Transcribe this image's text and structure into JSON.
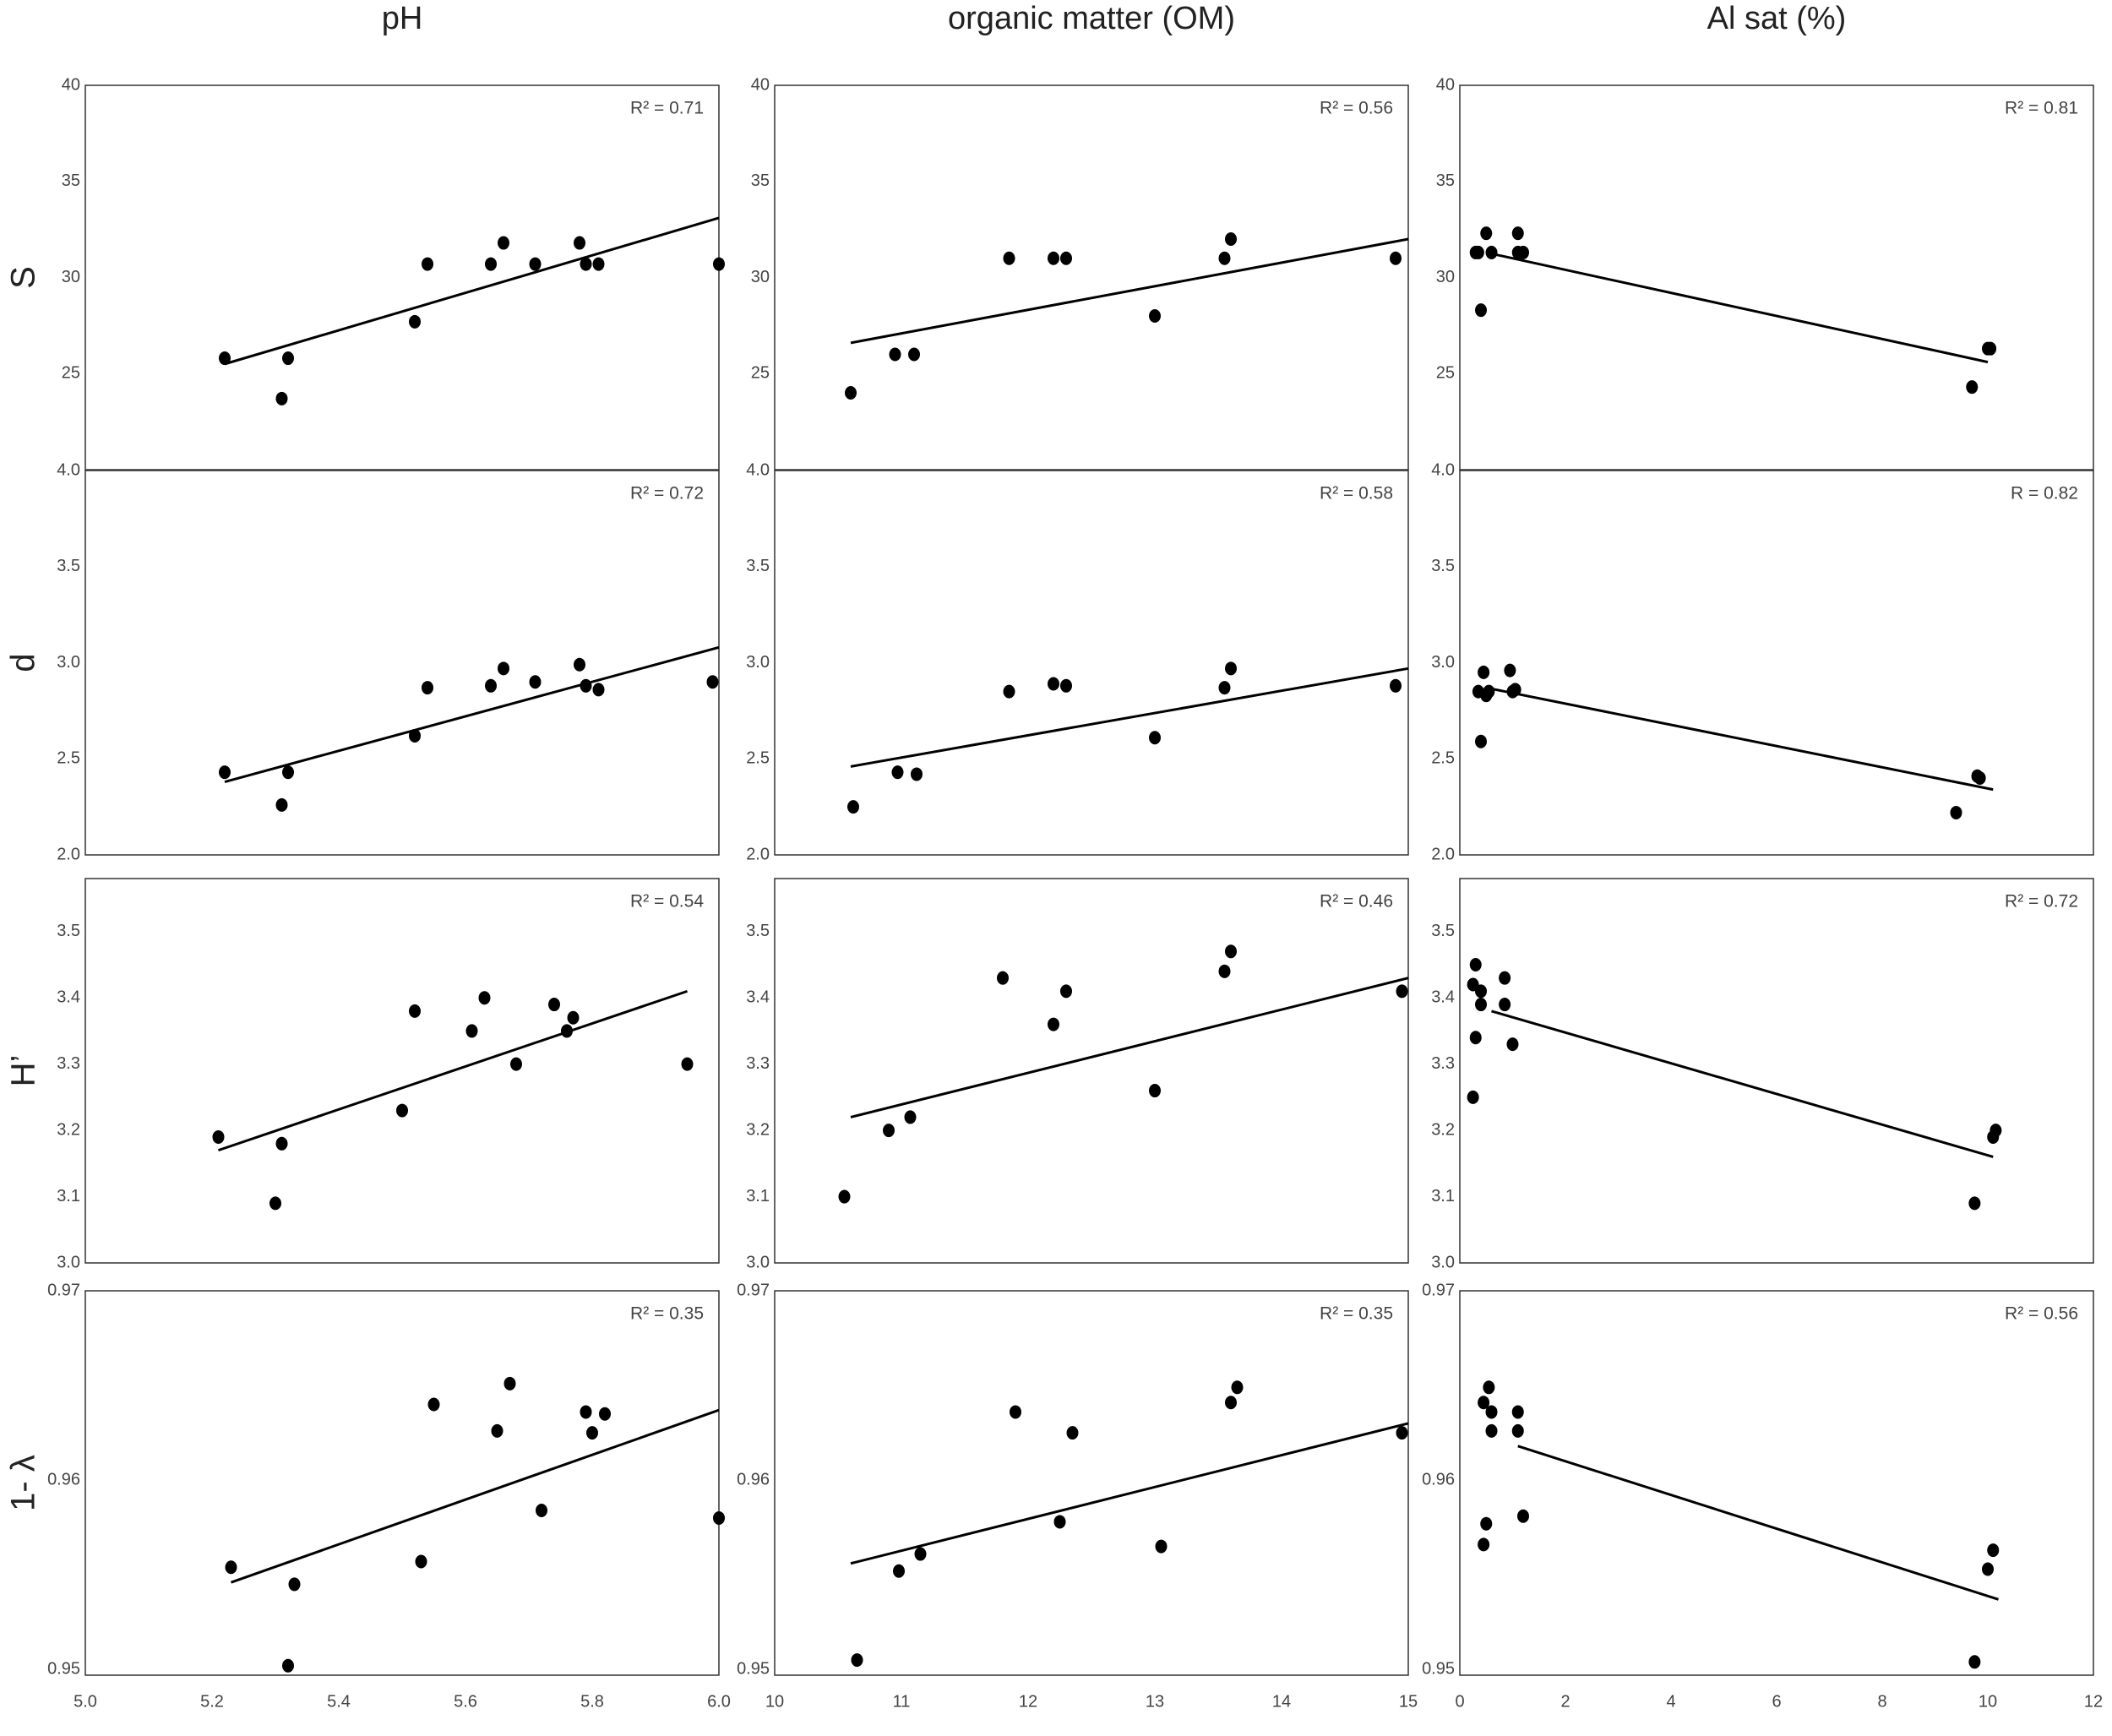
{
  "column_titles": [
    "pH",
    "organic matter (OM)",
    "Al sat (%)"
  ],
  "row_labels": [
    "S",
    "d",
    "H’",
    "1- λ"
  ],
  "chart_data": [
    {
      "type": "scatter",
      "color": "#000000",
      "annotation": "R² = 0.71",
      "x": [
        5.22,
        5.31,
        5.32,
        5.52,
        5.54,
        5.64,
        5.66,
        5.71,
        5.78,
        5.79,
        5.81,
        6.0
      ],
      "y": [
        25.8,
        23.7,
        25.8,
        27.7,
        30.7,
        30.7,
        31.8,
        30.7,
        31.8,
        30.7,
        30.7,
        30.7
      ],
      "fit": {
        "x": [
          5.22,
          6.0
        ],
        "y": [
          25.5,
          33.1
        ]
      },
      "xlim": [
        5,
        6
      ],
      "ylim": [
        20,
        40
      ],
      "yticks": [
        25,
        30,
        35,
        40
      ]
    },
    {
      "type": "scatter",
      "color": "#000000",
      "annotation": "R² = 0.56",
      "x": [
        10.6,
        10.95,
        11.1,
        11.85,
        12.2,
        12.3,
        13.0,
        13.55,
        13.6,
        14.9
      ],
      "y": [
        24,
        26,
        26,
        31,
        31,
        31,
        28,
        31,
        32,
        31
      ],
      "fit": {
        "x": [
          10.6,
          15
        ],
        "y": [
          26.6,
          32
        ]
      },
      "xlim": [
        10,
        15
      ],
      "ylim": [
        20,
        40
      ],
      "yticks": [
        25,
        30,
        35,
        40
      ]
    },
    {
      "type": "scatter",
      "color": "#000000",
      "annotation": "R² = 0.81",
      "x": [
        0.3,
        0.5,
        0.6,
        0.4,
        1.1,
        1.1,
        1.2,
        0.35,
        9.7,
        10.0,
        10.05
      ],
      "y": [
        31.3,
        32.3,
        31.3,
        28.3,
        32.3,
        31.3,
        31.3,
        31.3,
        24.3,
        26.3,
        26.3
      ],
      "fit": {
        "x": [
          0.5,
          10
        ],
        "y": [
          31.3,
          25.6
        ]
      },
      "xlim": [
        0,
        12
      ],
      "ylim": [
        20,
        40
      ],
      "yticks": [
        25,
        30,
        35,
        40
      ]
    },
    {
      "type": "scatter",
      "color": "#000000",
      "annotation": "R² = 0.72",
      "x": [
        5.22,
        5.31,
        5.32,
        5.52,
        5.54,
        5.64,
        5.66,
        5.71,
        5.78,
        5.79,
        5.81,
        5.99
      ],
      "y": [
        2.43,
        2.26,
        2.43,
        2.62,
        2.87,
        2.88,
        2.97,
        2.9,
        2.99,
        2.88,
        2.86,
        2.9
      ],
      "fit": {
        "x": [
          5.22,
          6.0
        ],
        "y": [
          2.38,
          3.08
        ]
      },
      "xlim": [
        5,
        6
      ],
      "ylim": [
        2,
        4
      ],
      "yticks": [
        {
          "value": 2,
          "label": "2.0"
        },
        2.5,
        {
          "value": 3,
          "label": "3.0"
        },
        3.5,
        {
          "value": 4,
          "label": "4.0"
        }
      ]
    },
    {
      "type": "scatter",
      "color": "#000000",
      "annotation": "R² = 0.58",
      "x": [
        10.62,
        10.97,
        11.12,
        11.85,
        12.2,
        12.3,
        13.0,
        13.55,
        13.6,
        14.9
      ],
      "y": [
        2.25,
        2.43,
        2.42,
        2.85,
        2.89,
        2.88,
        2.61,
        2.87,
        2.97,
        2.88
      ],
      "fit": {
        "x": [
          10.6,
          15
        ],
        "y": [
          2.46,
          2.97
        ]
      },
      "xlim": [
        10,
        15
      ],
      "ylim": [
        2,
        4
      ],
      "yticks": [
        {
          "value": 2,
          "label": "2.0"
        },
        2.5,
        {
          "value": 3,
          "label": "3.0"
        },
        3.5,
        {
          "value": 4,
          "label": "4.0"
        }
      ]
    },
    {
      "type": "scatter",
      "color": "#000000",
      "annotation": "R = 0.82",
      "x": [
        0.35,
        0.45,
        0.5,
        0.4,
        0.55,
        0.95,
        1.0,
        1.05,
        9.4,
        9.8,
        9.85
      ],
      "y": [
        2.85,
        2.95,
        2.83,
        2.59,
        2.85,
        2.96,
        2.85,
        2.86,
        2.22,
        2.41,
        2.4
      ],
      "fit": {
        "x": [
          0.5,
          10.1
        ],
        "y": [
          2.87,
          2.34
        ]
      },
      "xlim": [
        0,
        12
      ],
      "ylim": [
        2,
        4
      ],
      "yticks": [
        {
          "value": 2,
          "label": "2.0"
        },
        2.5,
        {
          "value": 3,
          "label": "3.0"
        },
        3.5,
        {
          "value": 4,
          "label": "4.0"
        }
      ]
    },
    {
      "type": "scatter",
      "color": "#000000",
      "annotation": "R² = 0.54",
      "x": [
        5.21,
        5.3,
        5.31,
        5.5,
        5.52,
        5.61,
        5.63,
        5.68,
        5.74,
        5.76,
        5.77,
        5.95
      ],
      "y": [
        3.19,
        3.09,
        3.18,
        3.23,
        3.38,
        3.35,
        3.4,
        3.3,
        3.39,
        3.35,
        3.37,
        3.3
      ],
      "fit": {
        "x": [
          5.21,
          5.95
        ],
        "y": [
          3.17,
          3.41
        ]
      },
      "xlim": [
        5,
        6
      ],
      "ylim": [
        3,
        3.58
      ],
      "yticks": [
        {
          "value": 3,
          "label": "3.0"
        },
        3.1,
        3.2,
        3.3,
        3.4,
        3.5
      ]
    },
    {
      "type": "scatter",
      "color": "#000000",
      "annotation": "R² = 0.46",
      "x": [
        10.55,
        10.9,
        11.07,
        11.8,
        12.2,
        12.3,
        13.0,
        13.55,
        13.6,
        14.95
      ],
      "y": [
        3.1,
        3.2,
        3.22,
        3.43,
        3.36,
        3.41,
        3.26,
        3.44,
        3.47,
        3.41
      ],
      "fit": {
        "x": [
          10.6,
          15
        ],
        "y": [
          3.22,
          3.43
        ]
      },
      "xlim": [
        10,
        15
      ],
      "ylim": [
        3,
        3.58
      ],
      "yticks": [
        {
          "value": 3,
          "label": "3.0"
        },
        3.1,
        3.2,
        3.3,
        3.4,
        3.5
      ]
    },
    {
      "type": "scatter",
      "color": "#000000",
      "annotation": "R² = 0.72",
      "x": [
        0.25,
        0.3,
        0.4,
        0.4,
        0.3,
        0.25,
        0.85,
        0.85,
        1.0,
        9.75,
        10.1,
        10.15
      ],
      "y": [
        3.42,
        3.45,
        3.41,
        3.39,
        3.34,
        3.25,
        3.43,
        3.39,
        3.33,
        3.09,
        3.19,
        3.2
      ],
      "fit": {
        "x": [
          0.6,
          10.1
        ],
        "y": [
          3.38,
          3.16
        ]
      },
      "xlim": [
        0,
        12
      ],
      "ylim": [
        3,
        3.58
      ],
      "yticks": [
        {
          "value": 3,
          "label": "3.0"
        },
        3.1,
        3.2,
        3.3,
        3.4,
        3.5
      ]
    },
    {
      "type": "scatter",
      "color": "#000000",
      "annotation": "R² = 0.35",
      "x": [
        5.23,
        5.32,
        5.33,
        5.53,
        5.55,
        5.65,
        5.67,
        5.72,
        5.79,
        5.8,
        5.82,
        6.0
      ],
      "y": [
        0.9554,
        0.9502,
        0.9545,
        0.9557,
        0.964,
        0.9626,
        0.9651,
        0.9584,
        0.9636,
        0.9625,
        0.9635,
        0.958
      ],
      "fit": {
        "x": [
          5.23,
          6.0
        ],
        "y": [
          0.9546,
          0.9637
        ]
      },
      "xlim": [
        5,
        6
      ],
      "ylim": [
        0.9497,
        0.97
      ],
      "yticks": [
        0.95,
        0.96,
        0.97
      ],
      "xticks": [
        {
          "value": 5,
          "label": "5.0"
        },
        5.2,
        5.4,
        5.6,
        5.8,
        {
          "value": 6,
          "label": "6.0"
        }
      ]
    },
    {
      "type": "scatter",
      "color": "#000000",
      "annotation": "R² = 0.35",
      "x": [
        10.65,
        10.98,
        11.15,
        11.9,
        12.25,
        12.35,
        13.05,
        13.6,
        13.65,
        14.95
      ],
      "y": [
        0.9505,
        0.9552,
        0.9561,
        0.9636,
        0.9578,
        0.9625,
        0.9565,
        0.9641,
        0.9649,
        0.9625
      ],
      "fit": {
        "x": [
          10.6,
          15
        ],
        "y": [
          0.9556,
          0.963
        ]
      },
      "xlim": [
        10,
        15
      ],
      "ylim": [
        0.9497,
        0.97
      ],
      "yticks": [
        0.95,
        0.96,
        0.97
      ],
      "xticks": [
        10,
        11,
        12,
        13,
        14,
        15
      ]
    },
    {
      "type": "scatter",
      "color": "#000000",
      "annotation": "R² = 0.56",
      "x": [
        0.45,
        0.55,
        0.6,
        0.6,
        0.5,
        0.45,
        1.1,
        1.1,
        1.2,
        9.75,
        10.0,
        10.1
      ],
      "y": [
        0.9641,
        0.9649,
        0.9636,
        0.9626,
        0.9577,
        0.9566,
        0.9636,
        0.9626,
        0.9581,
        0.9504,
        0.9553,
        0.9563
      ],
      "fit": {
        "x": [
          1.1,
          10.2
        ],
        "y": [
          0.9618,
          0.9537
        ]
      },
      "xlim": [
        0,
        12
      ],
      "ylim": [
        0.9497,
        0.97
      ],
      "yticks": [
        0.95,
        0.96,
        0.97
      ],
      "xticks": [
        0,
        2,
        4,
        6,
        8,
        10,
        12
      ]
    }
  ]
}
